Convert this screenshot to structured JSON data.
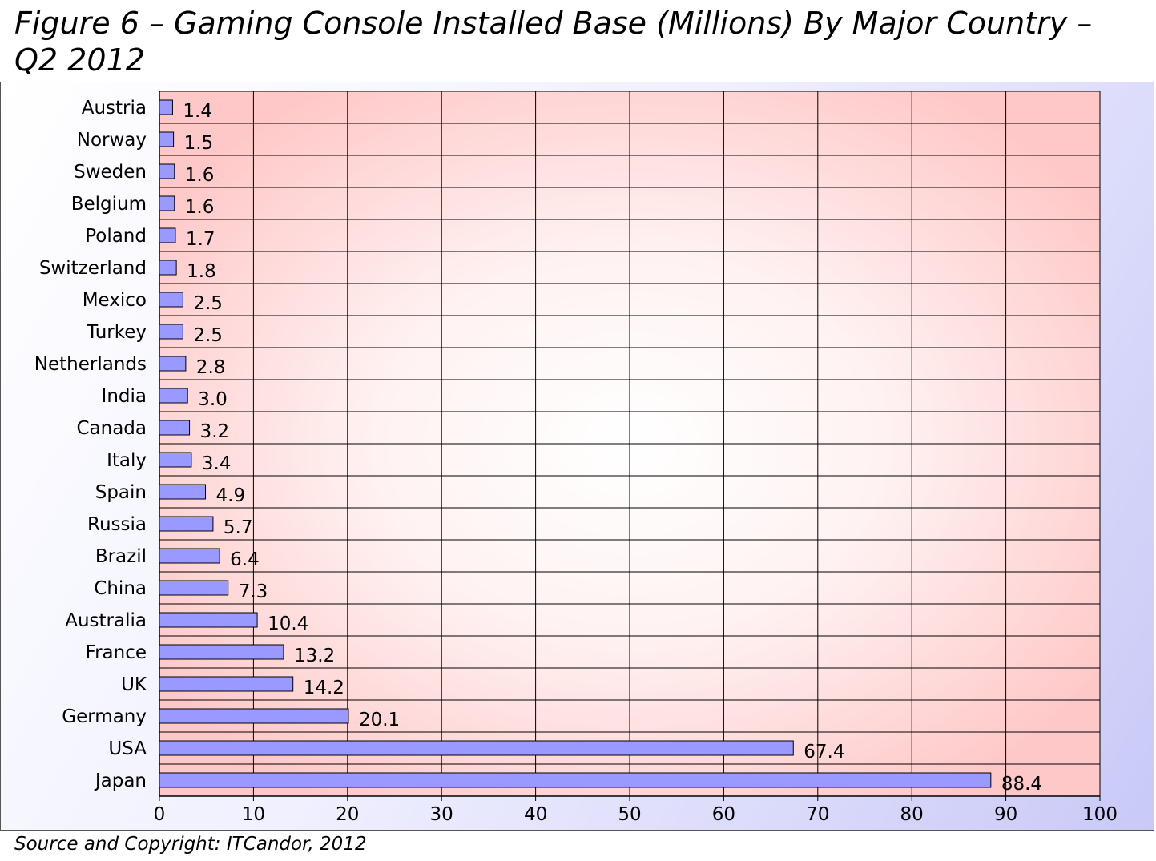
{
  "title": "Figure 6 – Gaming Console Installed Base (Millions) By Major Country – Q2 2012",
  "source": "Source and Copyright: ITCandor, 2012",
  "chart_data": {
    "type": "bar",
    "orientation": "horizontal",
    "title": "Figure 6 – Gaming Console Installed Base (Millions) By Major Country – Q2 2012",
    "categories": [
      "Austria",
      "Norway",
      "Sweden",
      "Belgium",
      "Poland",
      "Switzerland",
      "Mexico",
      "Turkey",
      "Netherlands",
      "India",
      "Canada",
      "Italy",
      "Spain",
      "Russia",
      "Brazil",
      "China",
      "Australia",
      "France",
      "UK",
      "Germany",
      "USA",
      "Japan"
    ],
    "values": [
      1.4,
      1.5,
      1.6,
      1.6,
      1.7,
      1.8,
      2.5,
      2.5,
      2.8,
      3.0,
      3.2,
      3.4,
      4.9,
      5.7,
      6.4,
      7.3,
      10.4,
      13.2,
      14.2,
      20.1,
      67.4,
      88.4
    ],
    "value_labels": [
      "1.4",
      "1.5",
      "1.6",
      "1.6",
      "1.7",
      "1.8",
      "2.5",
      "2.5",
      "2.8",
      "3.0",
      "3.2",
      "3.4",
      "4.9",
      "5.7",
      "6.4",
      "7.3",
      "10.4",
      "13.2",
      "14.2",
      "20.1",
      "67.4",
      "88.4"
    ],
    "x_ticks": [
      "0",
      "10",
      "20",
      "30",
      "40",
      "50",
      "60",
      "70",
      "80",
      "90",
      "100"
    ],
    "xlim": [
      0,
      100
    ],
    "grid": true,
    "colors": {
      "bar": "#9999ff",
      "bar_stroke": "#000000",
      "plot_bg_edge": "#ffc8c8",
      "plot_bg_center": "#ffffff",
      "grid": "#000000"
    }
  }
}
